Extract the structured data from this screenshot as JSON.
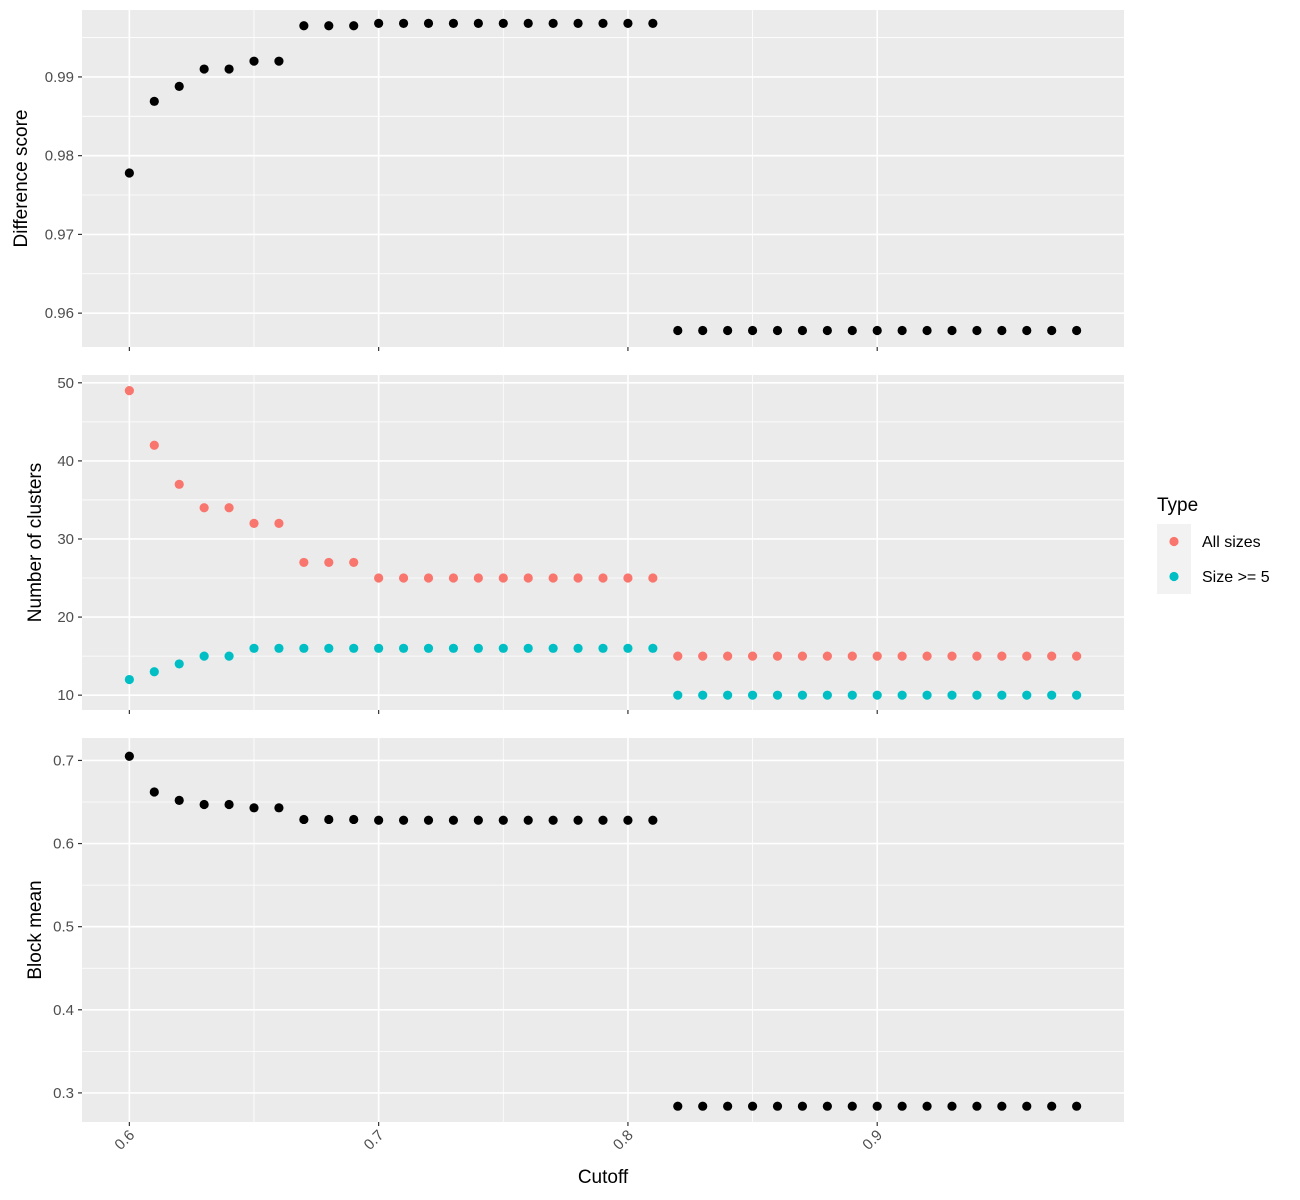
{
  "chart_data": {
    "type": "scatter",
    "xlabel": "Cutoff",
    "x_ticks": [
      0.6,
      0.7,
      0.8,
      0.9
    ],
    "x_tick_labels": [
      "0.6",
      "0.7",
      "0.8",
      "0.9"
    ],
    "xlim": [
      0.581,
      0.999
    ],
    "x": [
      0.6,
      0.61,
      0.62,
      0.63,
      0.64,
      0.65,
      0.66,
      0.67,
      0.68,
      0.69,
      0.7,
      0.71,
      0.72,
      0.73,
      0.74,
      0.75,
      0.76,
      0.77,
      0.78,
      0.79,
      0.8,
      0.81,
      0.82,
      0.83,
      0.84,
      0.85,
      0.86,
      0.87,
      0.88,
      0.89,
      0.9,
      0.91,
      0.92,
      0.93,
      0.94,
      0.95,
      0.96,
      0.97,
      0.98
    ],
    "grid": true,
    "background": "#ebebeb",
    "legend": {
      "title": "Type",
      "position": "right",
      "entries": [
        {
          "label": "All sizes",
          "color": "#F8766D"
        },
        {
          "label": "Size >= 5",
          "color": "#00BFC4"
        }
      ]
    },
    "panels": [
      {
        "ylabel": "Difference score",
        "ylim": [
          0.9557,
          0.9985
        ],
        "y_ticks": [
          0.96,
          0.97,
          0.98,
          0.99
        ],
        "y_tick_labels": [
          "0.96",
          "0.97",
          "0.98",
          "0.99"
        ],
        "series": [
          {
            "color": "#000000",
            "values": [
              0.9778,
              0.9869,
              0.9888,
              0.991,
              0.991,
              0.992,
              0.992,
              0.9965,
              0.9965,
              0.9965,
              0.9968,
              0.9968,
              0.9968,
              0.9968,
              0.9968,
              0.9968,
              0.9968,
              0.9968,
              0.9968,
              0.9968,
              0.9968,
              0.9968,
              0.9578,
              0.9578,
              0.9578,
              0.9578,
              0.9578,
              0.9578,
              0.9578,
              0.9578,
              0.9578,
              0.9578,
              0.9578,
              0.9578,
              0.9578,
              0.9578,
              0.9578,
              0.9578,
              0.9578
            ]
          }
        ]
      },
      {
        "ylabel": "Number of clusters",
        "ylim": [
          8.1,
          51.0
        ],
        "y_ticks": [
          10,
          20,
          30,
          40,
          50
        ],
        "y_tick_labels": [
          "10",
          "20",
          "30",
          "40",
          "50"
        ],
        "series": [
          {
            "name": "All sizes",
            "color": "#F8766D",
            "values": [
              49,
              42,
              37,
              34,
              34,
              32,
              32,
              27,
              27,
              27,
              25,
              25,
              25,
              25,
              25,
              25,
              25,
              25,
              25,
              25,
              25,
              25,
              15,
              15,
              15,
              15,
              15,
              15,
              15,
              15,
              15,
              15,
              15,
              15,
              15,
              15,
              15,
              15,
              15
            ]
          },
          {
            "name": "Size >= 5",
            "color": "#00BFC4",
            "values": [
              12,
              13,
              14,
              15,
              15,
              16,
              16,
              16,
              16,
              16,
              16,
              16,
              16,
              16,
              16,
              16,
              16,
              16,
              16,
              16,
              16,
              16,
              10,
              10,
              10,
              10,
              10,
              10,
              10,
              10,
              10,
              10,
              10,
              10,
              10,
              10,
              10,
              10,
              10
            ]
          }
        ]
      },
      {
        "ylabel": "Block mean",
        "ylim": [
          0.265,
          0.727
        ],
        "y_ticks": [
          0.3,
          0.4,
          0.5,
          0.6,
          0.7
        ],
        "y_tick_labels": [
          "0.3",
          "0.4",
          "0.5",
          "0.6",
          "0.7"
        ],
        "series": [
          {
            "color": "#000000",
            "values": [
              0.705,
              0.662,
              0.652,
              0.647,
              0.647,
              0.643,
              0.643,
              0.629,
              0.629,
              0.629,
              0.628,
              0.628,
              0.628,
              0.628,
              0.628,
              0.628,
              0.628,
              0.628,
              0.628,
              0.628,
              0.628,
              0.628,
              0.284,
              0.284,
              0.284,
              0.284,
              0.284,
              0.284,
              0.284,
              0.284,
              0.284,
              0.284,
              0.284,
              0.284,
              0.284,
              0.284,
              0.284,
              0.284,
              0.284
            ]
          }
        ]
      }
    ]
  }
}
